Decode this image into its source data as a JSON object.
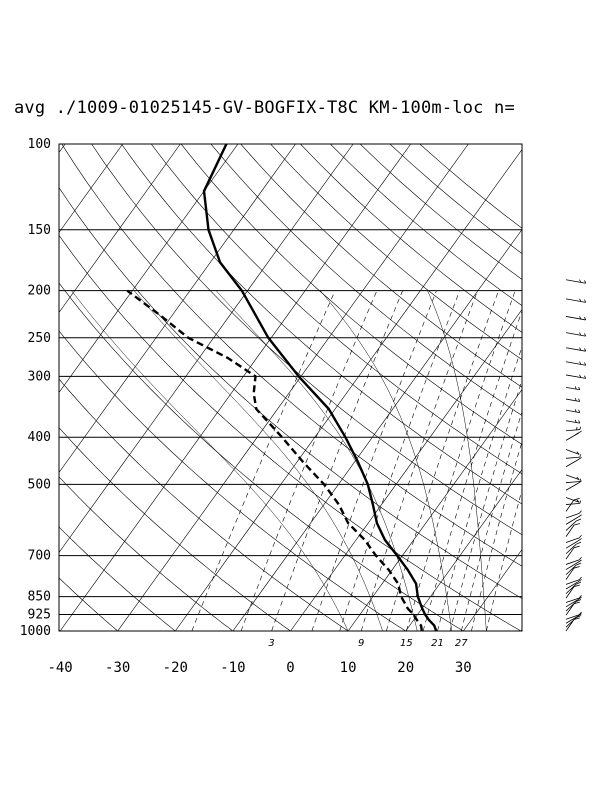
{
  "chart_data": {
    "type": "line",
    "title": "avg ./1009-01025145-GV-BOGFIX-T8C KM-100m-loc n=",
    "pressure_levels": [
      100,
      150,
      200,
      250,
      300,
      400,
      500,
      700,
      850,
      925,
      1000
    ],
    "temperature_ticks": [
      -40,
      -30,
      -20,
      -10,
      0,
      10,
      20,
      30
    ],
    "xlim": [
      -40,
      40
    ],
    "mixing_ratio_labels": [
      "3",
      "9",
      "15",
      "21",
      "27"
    ],
    "temperature_profile": {
      "style": "solid",
      "points": [
        {
          "p": 1000,
          "t": 25.3
        },
        {
          "p": 975,
          "t": 24.3
        },
        {
          "p": 950,
          "t": 22.7
        },
        {
          "p": 925,
          "t": 21.3
        },
        {
          "p": 900,
          "t": 20.1
        },
        {
          "p": 850,
          "t": 17.8
        },
        {
          "p": 800,
          "t": 15.9
        },
        {
          "p": 750,
          "t": 12.8
        },
        {
          "p": 700,
          "t": 9.1
        },
        {
          "p": 650,
          "t": 5.0
        },
        {
          "p": 600,
          "t": 1.5
        },
        {
          "p": 550,
          "t": -1.5
        },
        {
          "p": 500,
          "t": -4.9
        },
        {
          "p": 450,
          "t": -9.4
        },
        {
          "p": 400,
          "t": -14.7
        },
        {
          "p": 350,
          "t": -21.1
        },
        {
          "p": 300,
          "t": -30.4
        },
        {
          "p": 250,
          "t": -40.5
        },
        {
          "p": 200,
          "t": -51.0
        },
        {
          "p": 175,
          "t": -58.3
        },
        {
          "p": 150,
          "t": -64.4
        },
        {
          "p": 125,
          "t": -70.0
        },
        {
          "p": 100,
          "t": -72.0
        }
      ]
    },
    "dewpoint_profile": {
      "style": "dashed",
      "points": [
        {
          "p": 1000,
          "t": 22.8
        },
        {
          "p": 975,
          "t": 22.0
        },
        {
          "p": 950,
          "t": 20.6
        },
        {
          "p": 925,
          "t": 19.3
        },
        {
          "p": 900,
          "t": 17.6
        },
        {
          "p": 850,
          "t": 14.9
        },
        {
          "p": 800,
          "t": 12.8
        },
        {
          "p": 750,
          "t": 9.5
        },
        {
          "p": 700,
          "t": 5.4
        },
        {
          "p": 650,
          "t": 1.5
        },
        {
          "p": 600,
          "t": -3.5
        },
        {
          "p": 550,
          "t": -7.4
        },
        {
          "p": 500,
          "t": -12.5
        },
        {
          "p": 450,
          "t": -18.9
        },
        {
          "p": 400,
          "t": -25.7
        },
        {
          "p": 350,
          "t": -33.7
        },
        {
          "p": 325,
          "t": -36.1
        },
        {
          "p": 300,
          "t": -37.9
        },
        {
          "p": 275,
          "t": -45.0
        },
        {
          "p": 250,
          "t": -54.4
        },
        {
          "p": 225,
          "t": -62.0
        },
        {
          "p": 200,
          "t": -70.9
        }
      ]
    },
    "wind_barbs_column": "right side, levels 1000 to 150 hPa"
  }
}
